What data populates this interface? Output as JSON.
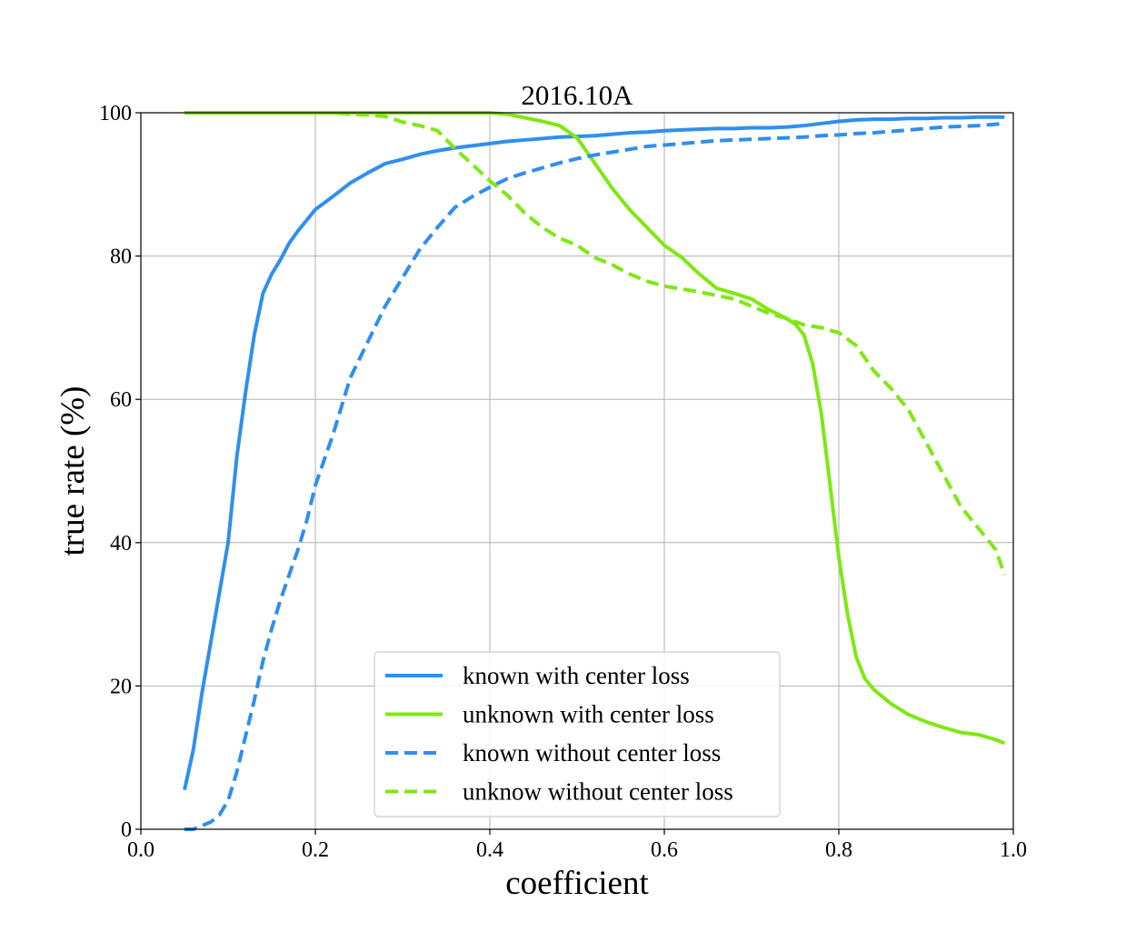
{
  "chart_data": {
    "type": "line",
    "title": "2016.10A",
    "xlabel": "coefficient",
    "ylabel": "true rate (%)",
    "xlim": [
      0.0,
      1.0
    ],
    "ylim": [
      0,
      100
    ],
    "xticks": [
      "0.0",
      "0.2",
      "0.4",
      "0.6",
      "0.8",
      "1.0"
    ],
    "yticks": [
      "0",
      "20",
      "40",
      "60",
      "80",
      "100"
    ],
    "grid": true,
    "legend_position": "lower-center",
    "series": [
      {
        "name": "known with center loss",
        "color": "#2f8ff0",
        "style": "solid",
        "x": [
          0.05,
          0.06,
          0.07,
          0.08,
          0.09,
          0.1,
          0.11,
          0.12,
          0.13,
          0.14,
          0.15,
          0.16,
          0.17,
          0.18,
          0.19,
          0.2,
          0.22,
          0.24,
          0.26,
          0.28,
          0.3,
          0.32,
          0.34,
          0.36,
          0.38,
          0.4,
          0.42,
          0.44,
          0.46,
          0.48,
          0.5,
          0.52,
          0.54,
          0.56,
          0.58,
          0.6,
          0.62,
          0.64,
          0.66,
          0.68,
          0.7,
          0.72,
          0.74,
          0.76,
          0.78,
          0.8,
          0.82,
          0.84,
          0.86,
          0.88,
          0.9,
          0.92,
          0.94,
          0.96,
          0.98,
          0.99
        ],
        "y": [
          5.5,
          11,
          19,
          26,
          33,
          40,
          52,
          61,
          69,
          74.8,
          77.5,
          79.5,
          81.8,
          83.5,
          85,
          86.5,
          88.3,
          90.2,
          91.6,
          92.9,
          93.5,
          94.2,
          94.7,
          95.1,
          95.4,
          95.7,
          96.0,
          96.2,
          96.4,
          96.6,
          96.7,
          96.8,
          97.0,
          97.2,
          97.3,
          97.5,
          97.6,
          97.7,
          97.8,
          97.8,
          97.9,
          97.9,
          98.0,
          98.2,
          98.5,
          98.8,
          99.0,
          99.1,
          99.1,
          99.2,
          99.2,
          99.3,
          99.3,
          99.4,
          99.4,
          99.4
        ]
      },
      {
        "name": "unknown with center loss",
        "color": "#7fe812",
        "style": "solid",
        "x": [
          0.05,
          0.1,
          0.2,
          0.3,
          0.4,
          0.42,
          0.44,
          0.46,
          0.48,
          0.5,
          0.52,
          0.54,
          0.56,
          0.58,
          0.6,
          0.62,
          0.64,
          0.66,
          0.68,
          0.7,
          0.72,
          0.74,
          0.75,
          0.76,
          0.77,
          0.78,
          0.79,
          0.8,
          0.81,
          0.82,
          0.83,
          0.84,
          0.85,
          0.86,
          0.88,
          0.9,
          0.92,
          0.94,
          0.96,
          0.98,
          0.99
        ],
        "y": [
          100,
          100,
          100,
          100,
          100,
          99.8,
          99.3,
          98.8,
          98.2,
          96.5,
          93,
          89.5,
          86.5,
          84,
          81.5,
          79.8,
          77.5,
          75.5,
          74.8,
          74.0,
          72.5,
          71.3,
          70.5,
          69.0,
          65.0,
          58.0,
          48.0,
          38.0,
          30.0,
          24.0,
          21.0,
          19.5,
          18.5,
          17.5,
          16.0,
          15.0,
          14.2,
          13.5,
          13.2,
          12.5,
          12.0
        ]
      },
      {
        "name": "known without center loss",
        "color": "#2f8ff0",
        "style": "dashed",
        "x": [
          0.05,
          0.06,
          0.07,
          0.08,
          0.09,
          0.1,
          0.11,
          0.12,
          0.13,
          0.14,
          0.15,
          0.16,
          0.17,
          0.18,
          0.19,
          0.2,
          0.22,
          0.24,
          0.26,
          0.28,
          0.3,
          0.32,
          0.34,
          0.36,
          0.38,
          0.4,
          0.42,
          0.44,
          0.46,
          0.48,
          0.5,
          0.52,
          0.54,
          0.56,
          0.58,
          0.6,
          0.62,
          0.64,
          0.66,
          0.68,
          0.7,
          0.72,
          0.74,
          0.76,
          0.78,
          0.8,
          0.82,
          0.84,
          0.86,
          0.88,
          0.9,
          0.92,
          0.94,
          0.96,
          0.98,
          0.99
        ],
        "y": [
          0,
          0,
          0.5,
          1,
          2,
          4,
          8,
          13,
          18,
          23.5,
          28,
          32,
          35.5,
          39,
          43,
          48,
          55,
          63,
          68,
          73,
          77,
          81,
          84,
          86.8,
          88.3,
          89.6,
          90.8,
          91.6,
          92.3,
          93.0,
          93.6,
          94.1,
          94.5,
          94.9,
          95.3,
          95.5,
          95.7,
          95.9,
          96.1,
          96.2,
          96.3,
          96.4,
          96.5,
          96.6,
          96.8,
          96.9,
          97.1,
          97.2,
          97.4,
          97.6,
          97.8,
          98.0,
          98.1,
          98.2,
          98.4,
          98.5
        ]
      },
      {
        "name": "unknow without center loss",
        "color": "#7fe812",
        "style": "dashed",
        "x": [
          0.05,
          0.1,
          0.15,
          0.2,
          0.22,
          0.24,
          0.26,
          0.28,
          0.3,
          0.32,
          0.34,
          0.36,
          0.38,
          0.4,
          0.42,
          0.44,
          0.46,
          0.48,
          0.5,
          0.52,
          0.54,
          0.56,
          0.58,
          0.6,
          0.62,
          0.64,
          0.66,
          0.68,
          0.7,
          0.72,
          0.74,
          0.76,
          0.78,
          0.8,
          0.82,
          0.84,
          0.86,
          0.88,
          0.9,
          0.92,
          0.94,
          0.96,
          0.98,
          0.99
        ],
        "y": [
          100,
          100,
          100,
          100,
          100,
          99.8,
          99.7,
          99.5,
          98.7,
          98.2,
          97.5,
          95.0,
          92.8,
          90.5,
          88.5,
          86.0,
          84.0,
          82.5,
          81.5,
          79.8,
          78.8,
          77.5,
          76.5,
          75.8,
          75.4,
          75.0,
          74.5,
          74.0,
          73.0,
          72.0,
          71.3,
          70.4,
          70.0,
          69.3,
          67.5,
          64.0,
          61.5,
          58.5,
          54.0,
          49.5,
          45.0,
          42.0,
          39.0,
          35.5
        ]
      }
    ]
  }
}
